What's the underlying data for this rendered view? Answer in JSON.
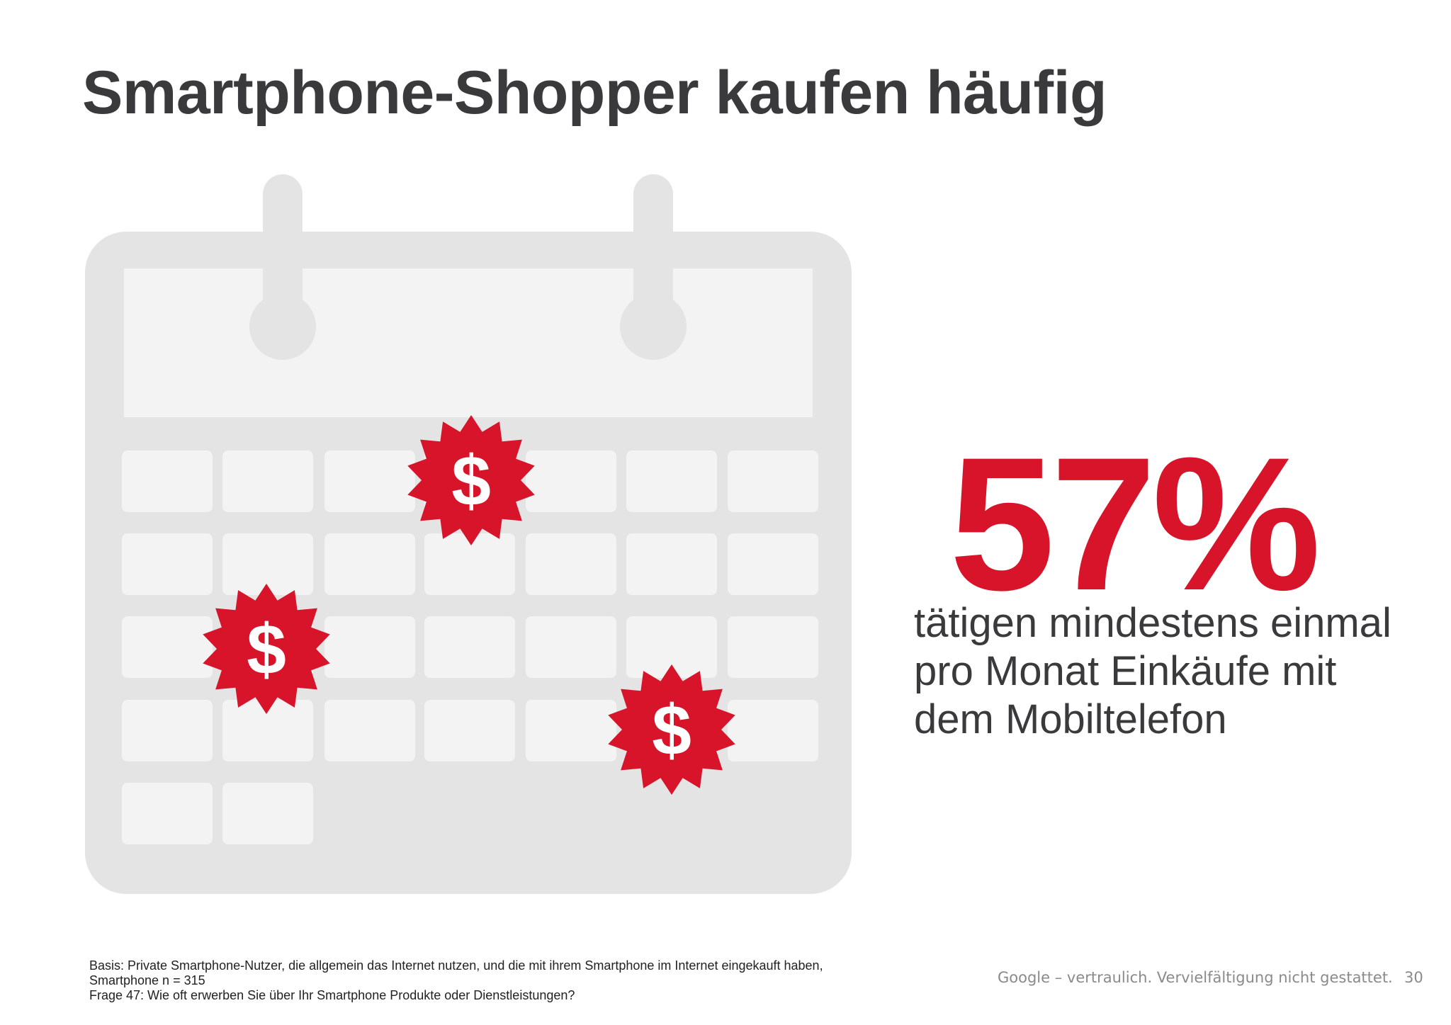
{
  "slide": {
    "title": "Smartphone-Shopper kaufen häufig",
    "stat_value": "57%",
    "stat_text_lines": [
      "tätigen mindestens einmal",
      "pro Monat Einkäufe mit",
      "dem Mobiltelefon"
    ],
    "source_lines": [
      "Basis: Private Smartphone-Nutzer, die allgemein das Internet nutzen, und die mit ihrem Smartphone im Internet eingekauft haben,",
      "Smartphone n = 315",
      "Frage 47: Wie oft erwerben Sie über Ihr Smartphone Produkte oder Dienstleistungen?"
    ],
    "confidential_note": "Google – vertraulich. Vervielfältigung nicht gestattet.",
    "page_number": "30"
  },
  "graphic": {
    "icons": [
      "calendar-icon",
      "dollar-starburst-icon"
    ],
    "dollar_symbol": "$",
    "colors": {
      "calendar_frame": "#e4e4e5",
      "calendar_cell": "#f3f3f4",
      "accent_red": "#d7142a",
      "text_dark": "#3a3a3c"
    }
  }
}
